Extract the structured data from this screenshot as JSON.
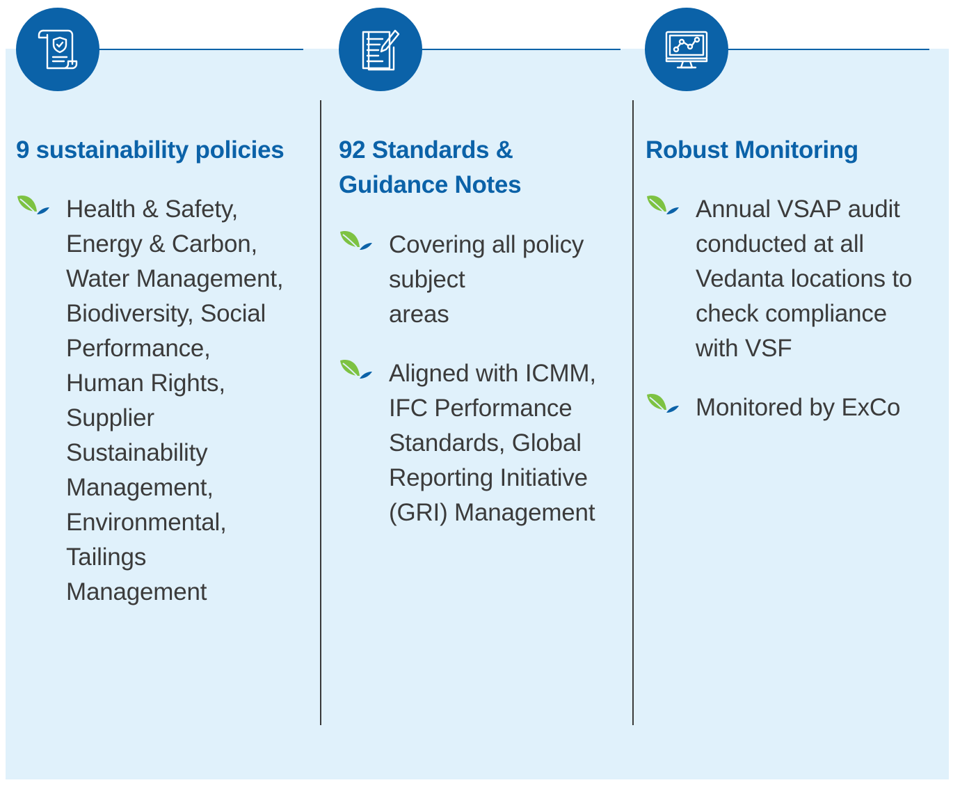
{
  "columns": [
    {
      "icon": "policy-scroll-shield-icon",
      "heading": "9 sustainability policies",
      "bullets": [
        "Health & Safety,\nEnergy & Carbon,\nWater Management,\nBiodiversity, Social\nPerformance,\nHuman Rights,\nSupplier\nSustainability\nManagement,\nEnvironmental,\nTailings\nManagement"
      ]
    },
    {
      "icon": "document-pen-icon",
      "heading": "92 Standards &\nGuidance Notes",
      "bullets": [
        "Covering all policy\nsubject\nareas",
        "Aligned with ICMM,\nIFC Performance\nStandards, Global\nReporting Initiative\n(GRI) Management"
      ]
    },
    {
      "icon": "monitor-chart-icon",
      "heading": "Robust Monitoring",
      "bullets": [
        "Annual VSAP audit\nconducted at all\nVedanta locations to\ncheck compliance\nwith VSF",
        "Monitored by ExCo"
      ]
    }
  ],
  "colors": {
    "accent": "#0b62a8",
    "panel": "#e0f1fb",
    "leaf_green": "#7dc242",
    "text": "#3b3b3b"
  }
}
